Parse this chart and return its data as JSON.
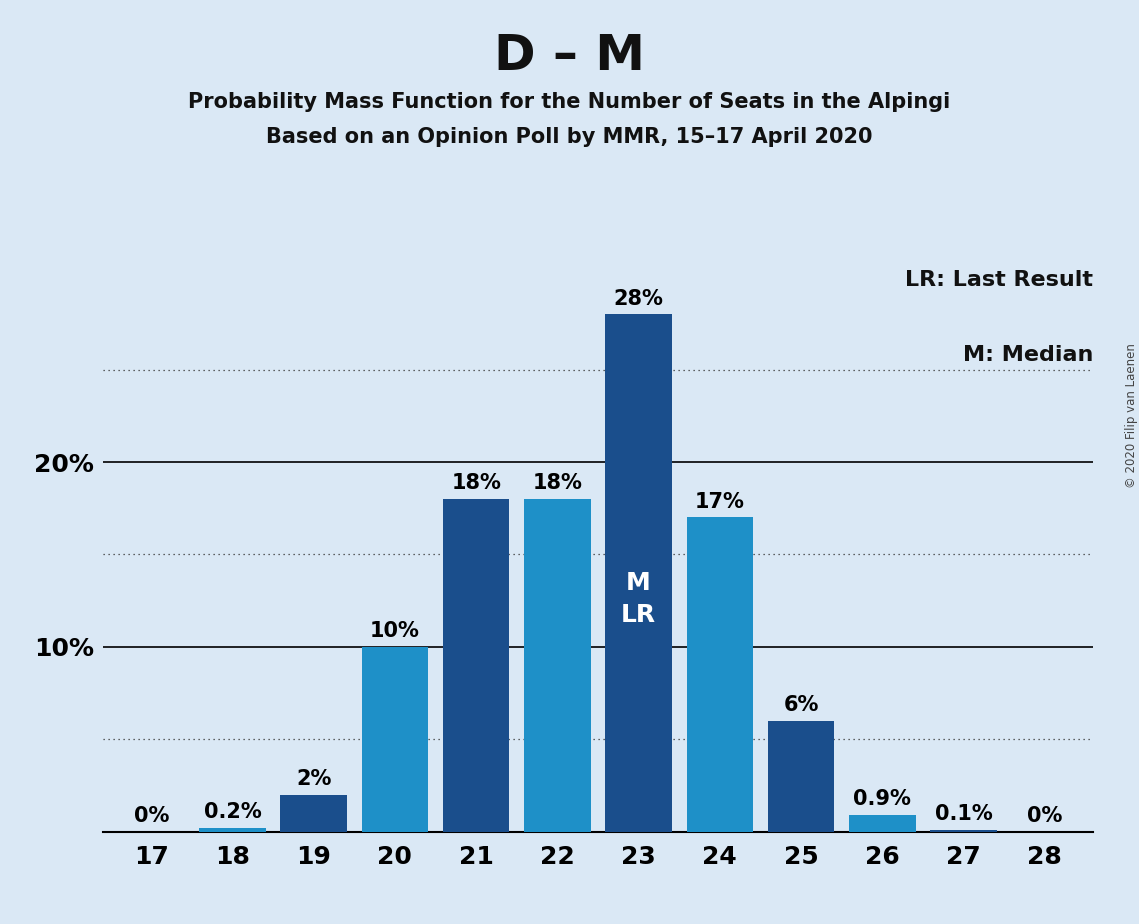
{
  "title": "D – M",
  "subtitle1": "Probability Mass Function for the Number of Seats in the Alpingi",
  "subtitle2": "Based on an Opinion Poll by MMR, 15–17 April 2020",
  "copyright": "© 2020 Filip van Laenen",
  "legend_lr": "LR: Last Result",
  "legend_m": "M: Median",
  "seats": [
    17,
    18,
    19,
    20,
    21,
    22,
    23,
    24,
    25,
    26,
    27,
    28
  ],
  "values": [
    0.0,
    0.2,
    2.0,
    10.0,
    18.0,
    18.0,
    28.0,
    17.0,
    6.0,
    0.9,
    0.1,
    0.0
  ],
  "colors": [
    "#1E90C8",
    "#1E90C8",
    "#1A4E8C",
    "#1E90C8",
    "#1A4E8C",
    "#1E90C8",
    "#1A4E8C",
    "#1E90C8",
    "#1A4E8C",
    "#1E90C8",
    "#1A4E8C",
    "#1E90C8"
  ],
  "bar_labels": [
    "0%",
    "0.2%",
    "2%",
    "10%",
    "18%",
    "18%",
    "28%",
    "17%",
    "6%",
    "0.9%",
    "0.1%",
    "0%"
  ],
  "median_seat": 23,
  "last_result_seat": 23,
  "ytick_values": [
    10,
    20
  ],
  "ytick_labels": [
    "10%",
    "20%"
  ],
  "solid_lines": [
    10,
    20
  ],
  "dotted_lines": [
    5,
    15,
    25
  ],
  "background_color": "#DAE8F5",
  "bar_dark": "#1A4E8C",
  "bar_light": "#1E90C8",
  "title_fontsize": 36,
  "subtitle_fontsize": 15,
  "label_fontsize": 15,
  "tick_fontsize": 18,
  "legend_fontsize": 16,
  "inbar_fontsize": 18,
  "ylim": [
    0,
    31
  ],
  "bar_width": 0.82
}
